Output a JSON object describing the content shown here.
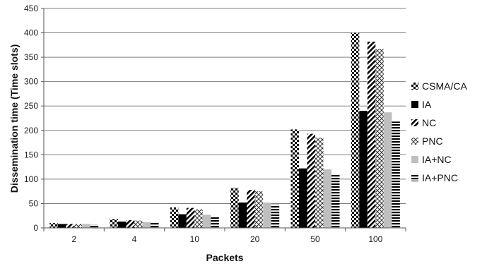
{
  "chart_data": {
    "type": "bar",
    "title": "",
    "xlabel": "Packets",
    "ylabel": "Dissemination time (Time slots)",
    "ylim": [
      0,
      450
    ],
    "yticks": [
      0,
      50,
      100,
      150,
      200,
      250,
      300,
      350,
      400,
      450
    ],
    "grid": true,
    "legend_position": "right",
    "categories": [
      "2",
      "4",
      "10",
      "20",
      "50",
      "100"
    ],
    "series": [
      {
        "name": "CSMA/CA",
        "pattern": "checker",
        "values": [
          10,
          18,
          42,
          82,
          202,
          400
        ]
      },
      {
        "name": "IA",
        "pattern": "solid-black",
        "values": [
          8,
          13,
          28,
          52,
          122,
          240
        ]
      },
      {
        "name": "NC",
        "pattern": "diagonal",
        "values": [
          8,
          16,
          41,
          78,
          193,
          382
        ]
      },
      {
        "name": "PNC",
        "pattern": "diamond",
        "values": [
          8,
          15,
          38,
          75,
          185,
          367
        ]
      },
      {
        "name": "IA+NC",
        "pattern": "solid-gray",
        "values": [
          8,
          12,
          27,
          52,
          120,
          237
        ]
      },
      {
        "name": "IA+PNC",
        "pattern": "horizontal",
        "values": [
          7,
          12,
          24,
          48,
          111,
          218
        ]
      }
    ]
  }
}
